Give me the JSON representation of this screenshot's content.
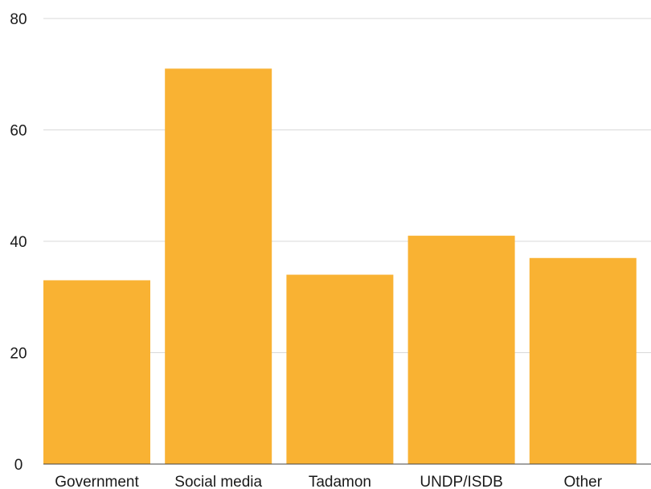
{
  "chart_data": {
    "type": "bar",
    "title": "",
    "xlabel": "",
    "ylabel": "",
    "categories": [
      "Government",
      "Social media",
      "Tadamon",
      "UNDP/ISDB",
      "Other"
    ],
    "values": [
      33,
      71,
      34,
      41,
      37
    ],
    "ylim": [
      0,
      80
    ],
    "yticks": [
      0,
      20,
      40,
      60,
      80
    ],
    "grid": true,
    "legend": "none",
    "bar_color": "#F9B233",
    "grid_color": "#d9d9d9",
    "axis_color": "#444444"
  }
}
